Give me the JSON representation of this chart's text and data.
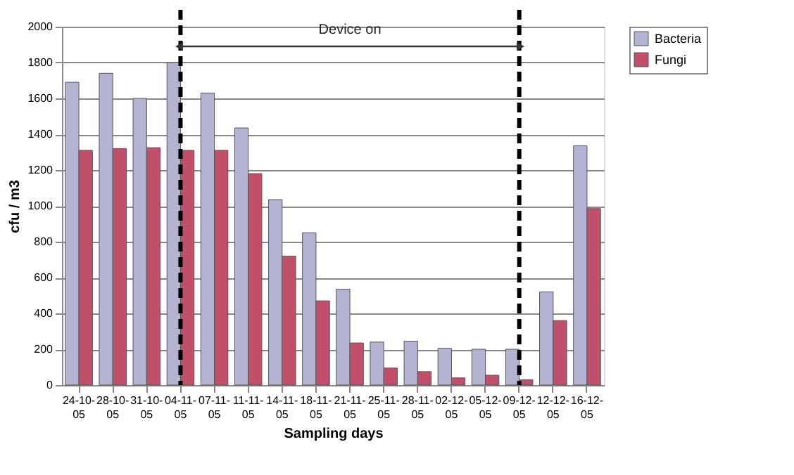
{
  "chart_data": {
    "type": "bar",
    "xlabel": "Sampling days",
    "ylabel": "cfu / m3",
    "categories": [
      "24-10-05",
      "28-10-05",
      "31-10-05",
      "04-11-05",
      "07-11-05",
      "11-11-05",
      "14-11-05",
      "18-11-05",
      "21-11-05",
      "25-11-05",
      "28-11-05",
      "02-12-05",
      "05-12-05",
      "09-12-05",
      "12-12-05",
      "16-12-05"
    ],
    "series": [
      {
        "name": "Bacteria",
        "color": "#b4b4d2",
        "values": [
          1690,
          1740,
          1600,
          1800,
          1630,
          1435,
          1035,
          850,
          535,
          240,
          245,
          205,
          200,
          200,
          520,
          1335
        ]
      },
      {
        "name": "Fungi",
        "color": "#c0506a",
        "values": [
          1310,
          1320,
          1325,
          1310,
          1310,
          1180,
          720,
          470,
          235,
          95,
          75,
          40,
          55,
          30,
          360,
          985
        ]
      }
    ],
    "ylim": [
      0,
      2000
    ],
    "yticks": [
      0,
      200,
      400,
      600,
      800,
      1000,
      1200,
      1400,
      1600,
      1800,
      2000
    ],
    "ref_lines": [
      {
        "axis": "x",
        "value": "04-11-05",
        "color": "#000000",
        "line_style": "dashed"
      },
      {
        "axis": "x",
        "value": "09-12-05",
        "color": "#000000",
        "line_style": "dashed"
      }
    ],
    "annotations": [
      "Device on"
    ],
    "grid": "y",
    "legend": "right"
  }
}
